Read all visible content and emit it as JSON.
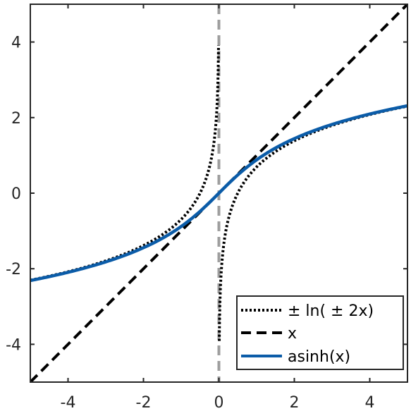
{
  "chart_data": {
    "type": "line",
    "title": "",
    "xlabel": "",
    "ylabel": "",
    "xlim": [
      -5,
      5
    ],
    "ylim": [
      -5,
      5
    ],
    "x_ticks": [
      -4,
      -2,
      0,
      2,
      4
    ],
    "y_ticks": [
      -4,
      -2,
      0,
      2,
      4
    ],
    "grid": false,
    "legend_position": "bottom-right",
    "series": [
      {
        "name": "± ln( ± 2x)",
        "style": "dotted",
        "color": "#000000",
        "branches": [
          {
            "x": [
              -5,
              -4,
              -3,
              -2,
              -1.5,
              -1,
              -0.75,
              -0.5,
              -0.35,
              -0.25,
              -0.15,
              -0.1,
              -0.06,
              -0.04,
              -0.02,
              -0.01
            ],
            "y": [
              -2.303,
              -2.079,
              -1.792,
              -1.386,
              -1.099,
              -0.693,
              -0.405,
              0,
              0.357,
              0.693,
              1.204,
              1.609,
              2.12,
              2.526,
              3.219,
              3.912
            ]
          },
          {
            "x": [
              0.01,
              0.02,
              0.04,
              0.06,
              0.1,
              0.15,
              0.25,
              0.35,
              0.5,
              0.75,
              1,
              1.5,
              2,
              3,
              4,
              5
            ],
            "y": [
              -3.912,
              -3.219,
              -2.526,
              -2.12,
              -1.609,
              -1.204,
              -0.693,
              -0.357,
              0,
              0.405,
              0.693,
              1.099,
              1.386,
              1.792,
              2.079,
              2.303
            ]
          }
        ]
      },
      {
        "name": "x",
        "style": "dashed",
        "color": "#000000",
        "x": [
          -5,
          5
        ],
        "y": [
          -5,
          5
        ]
      },
      {
        "name": "asinh(x)",
        "style": "solid",
        "color": "#0b5ca8",
        "x": [
          -5,
          -4,
          -3,
          -2,
          -1.5,
          -1,
          -0.75,
          -0.5,
          -0.25,
          0,
          0.25,
          0.5,
          0.75,
          1,
          1.5,
          2,
          3,
          4,
          5
        ],
        "y": [
          -2.312,
          -2.095,
          -1.818,
          -1.444,
          -1.195,
          -0.881,
          -0.693,
          -0.481,
          -0.247,
          0,
          0.247,
          0.481,
          0.693,
          0.881,
          1.195,
          1.444,
          1.818,
          2.095,
          2.312
        ]
      }
    ],
    "vertical_reference_line": {
      "x": 0,
      "style": "dashed",
      "color": "#9e9e9e"
    }
  }
}
